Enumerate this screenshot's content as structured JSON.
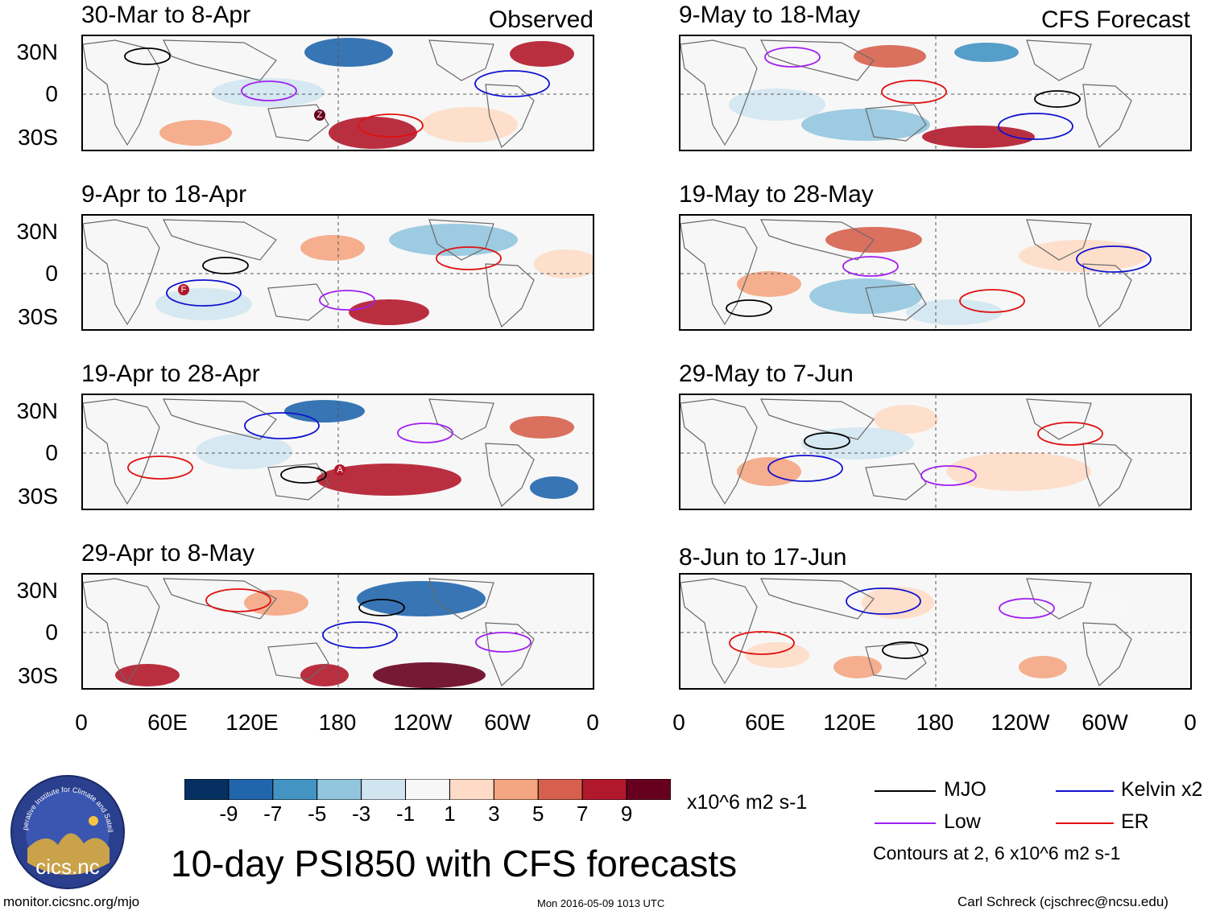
{
  "header": {
    "left_label": "Observed",
    "right_label": "CFS Forecast"
  },
  "axes": {
    "lat_labels": [
      "30N",
      "0",
      "30S"
    ],
    "lon_labels": [
      "0",
      "60E",
      "120E",
      "180",
      "120W",
      "60W",
      "0"
    ]
  },
  "observed": [
    {
      "title": "30-Mar to 8-Apr",
      "marker": "Z"
    },
    {
      "title": "9-Apr to 18-Apr",
      "marker": "F"
    },
    {
      "title": "19-Apr to 28-Apr",
      "marker": "A"
    },
    {
      "title": "29-Apr to 8-May",
      "marker": ""
    }
  ],
  "forecast": [
    {
      "title": "9-May to 18-May"
    },
    {
      "title": "19-May to 28-May"
    },
    {
      "title": "29-May to 7-Jun"
    },
    {
      "title": "8-Jun to 17-Jun"
    }
  ],
  "colorbar": {
    "colors": [
      "#053061",
      "#2166ac",
      "#4393c3",
      "#92c5de",
      "#d1e5f0",
      "#f7f7f7",
      "#fddbc7",
      "#f4a582",
      "#d6604d",
      "#b2182b",
      "#67001f"
    ],
    "tick_labels": [
      "-9",
      "-7",
      "-5",
      "-3",
      "-1",
      "1",
      "3",
      "5",
      "7",
      "9"
    ],
    "units": "x10^6 m2 s-1"
  },
  "legend": {
    "items": [
      {
        "label": "MJO",
        "color": "#000000"
      },
      {
        "label": "Kelvin x2",
        "color": "#1010d0"
      },
      {
        "label": "Low",
        "color": "#a020f0"
      },
      {
        "label": "ER",
        "color": "#e01010"
      }
    ],
    "note": "Contours at 2, 6 x10^6 m2 s-1"
  },
  "footer": {
    "main_title": "10-day PSI850 with CFS forecasts",
    "url": "monitor.cicsnc.org/mjo",
    "timestamp": "Mon 2016-05-09 1013 UTC",
    "author": "Carl Schreck (cjschrec@ncsu.edu)",
    "logo_arc_text": "Cooperative Institute for Climate and Satellites",
    "logo_text": "cics.nc"
  }
}
